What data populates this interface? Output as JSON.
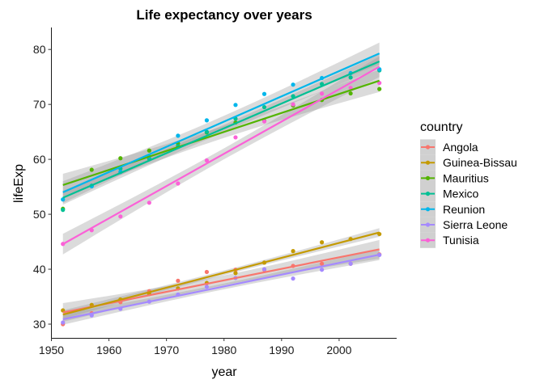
{
  "chart_data": {
    "type": "scatter",
    "title": "Life expectancy over years",
    "xlabel": "year",
    "ylabel": "lifeExp",
    "xlim": [
      1950,
      2010
    ],
    "ylim": [
      27.5,
      84
    ],
    "xticks": [
      1950,
      1960,
      1970,
      1980,
      1990,
      2000
    ],
    "yticks": [
      30,
      40,
      50,
      60,
      70,
      80
    ],
    "grid": false,
    "legend_title": "country",
    "legend_position": "right",
    "smooth": "linear fit with confidence band",
    "x": [
      1952,
      1957,
      1962,
      1967,
      1972,
      1977,
      1982,
      1987,
      1992,
      1997,
      2002,
      2007
    ],
    "series": [
      {
        "name": "Angola",
        "color": "#F8766D",
        "values": [
          30.0,
          32.0,
          34.0,
          36.0,
          37.9,
          39.5,
          39.9,
          39.9,
          40.6,
          41.0,
          41.0,
          42.7
        ]
      },
      {
        "name": "Guinea-Bissau",
        "color": "#C49A00",
        "values": [
          32.5,
          33.5,
          34.5,
          35.5,
          36.5,
          37.5,
          39.3,
          41.2,
          43.3,
          44.9,
          45.5,
          46.4
        ]
      },
      {
        "name": "Mauritius",
        "color": "#53B400",
        "values": [
          51.0,
          58.1,
          60.2,
          61.6,
          62.9,
          64.9,
          66.7,
          67.0,
          69.8,
          70.8,
          72.0,
          72.8
        ]
      },
      {
        "name": "Mexico",
        "color": "#00C094",
        "values": [
          50.8,
          55.2,
          58.3,
          60.1,
          62.4,
          65.0,
          67.4,
          69.5,
          71.5,
          73.7,
          74.9,
          76.2
        ]
      },
      {
        "name": "Reunion",
        "color": "#00B6EB",
        "values": [
          52.7,
          55.1,
          57.7,
          60.5,
          64.3,
          67.1,
          69.9,
          71.9,
          73.6,
          74.8,
          75.7,
          76.4
        ]
      },
      {
        "name": "Sierra Leone",
        "color": "#A58AFF",
        "values": [
          30.3,
          31.6,
          32.8,
          34.1,
          35.4,
          36.8,
          38.4,
          40.0,
          38.3,
          39.9,
          41.0,
          42.6
        ]
      },
      {
        "name": "Tunisia",
        "color": "#FB61D7",
        "values": [
          44.6,
          47.1,
          49.6,
          52.1,
          55.6,
          59.8,
          64.0,
          66.9,
          70.0,
          71.97,
          73.0,
          73.9
        ]
      }
    ]
  }
}
